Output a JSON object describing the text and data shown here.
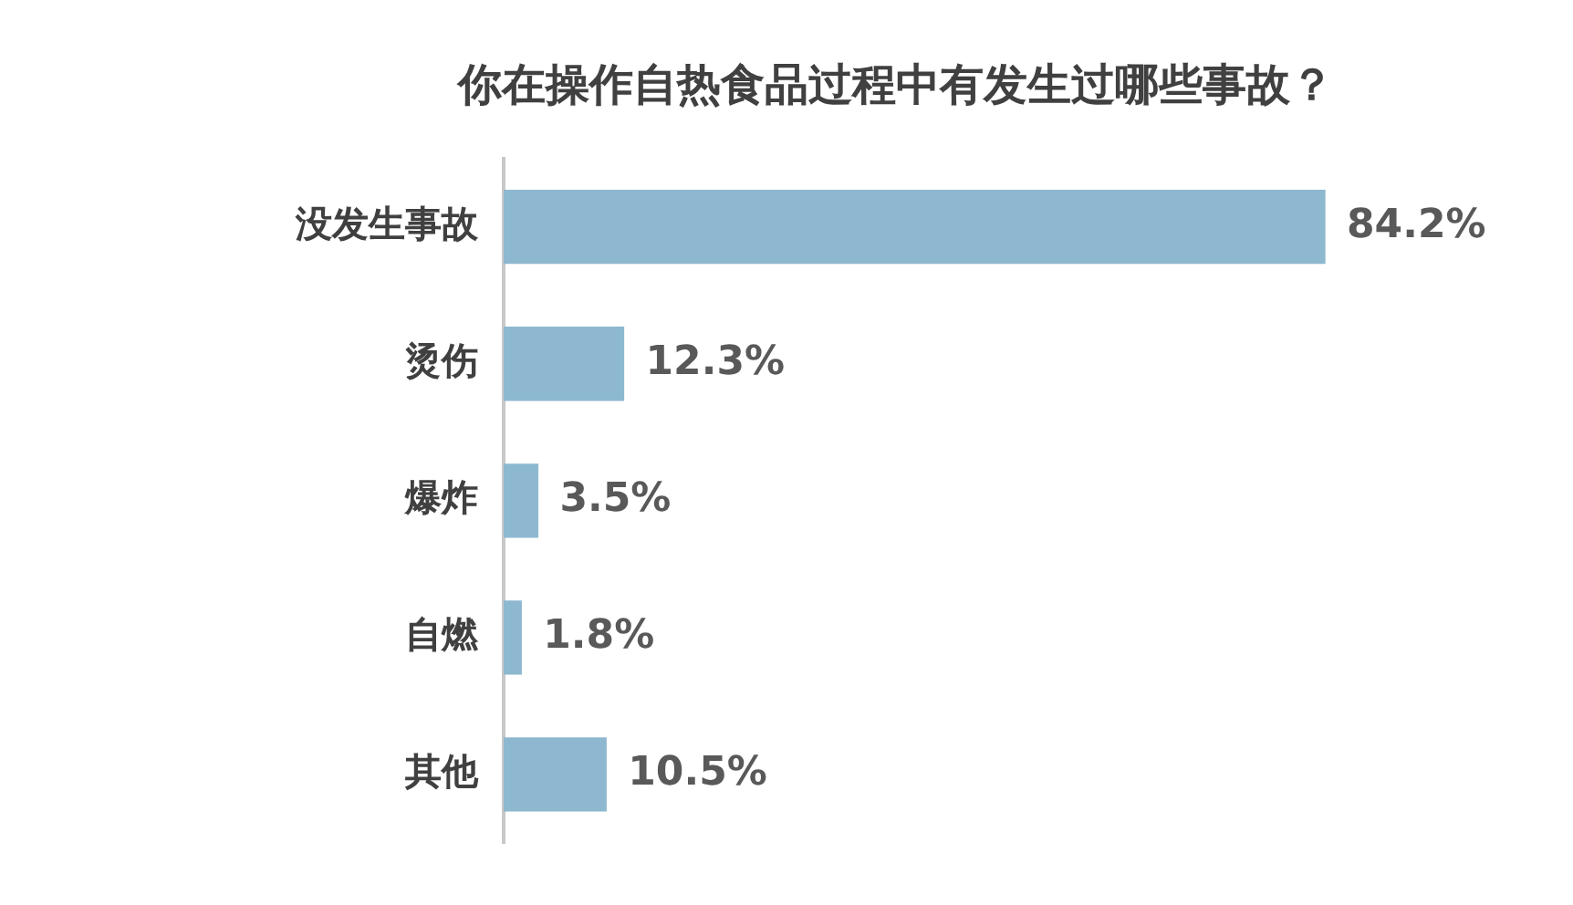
{
  "chart_data": {
    "type": "bar",
    "orientation": "horizontal",
    "title": "你在操作自热食品过程中有发生过哪些事故？",
    "categories": [
      "没发生事故",
      "烫伤",
      "爆炸",
      "自燃",
      "其他"
    ],
    "values": [
      84.2,
      12.3,
      3.5,
      1.8,
      10.5
    ],
    "value_labels": [
      "84.2%",
      "12.3%",
      "3.5%",
      "1.8%",
      "10.5%"
    ],
    "color": "#8db8cf",
    "legend": false
  }
}
